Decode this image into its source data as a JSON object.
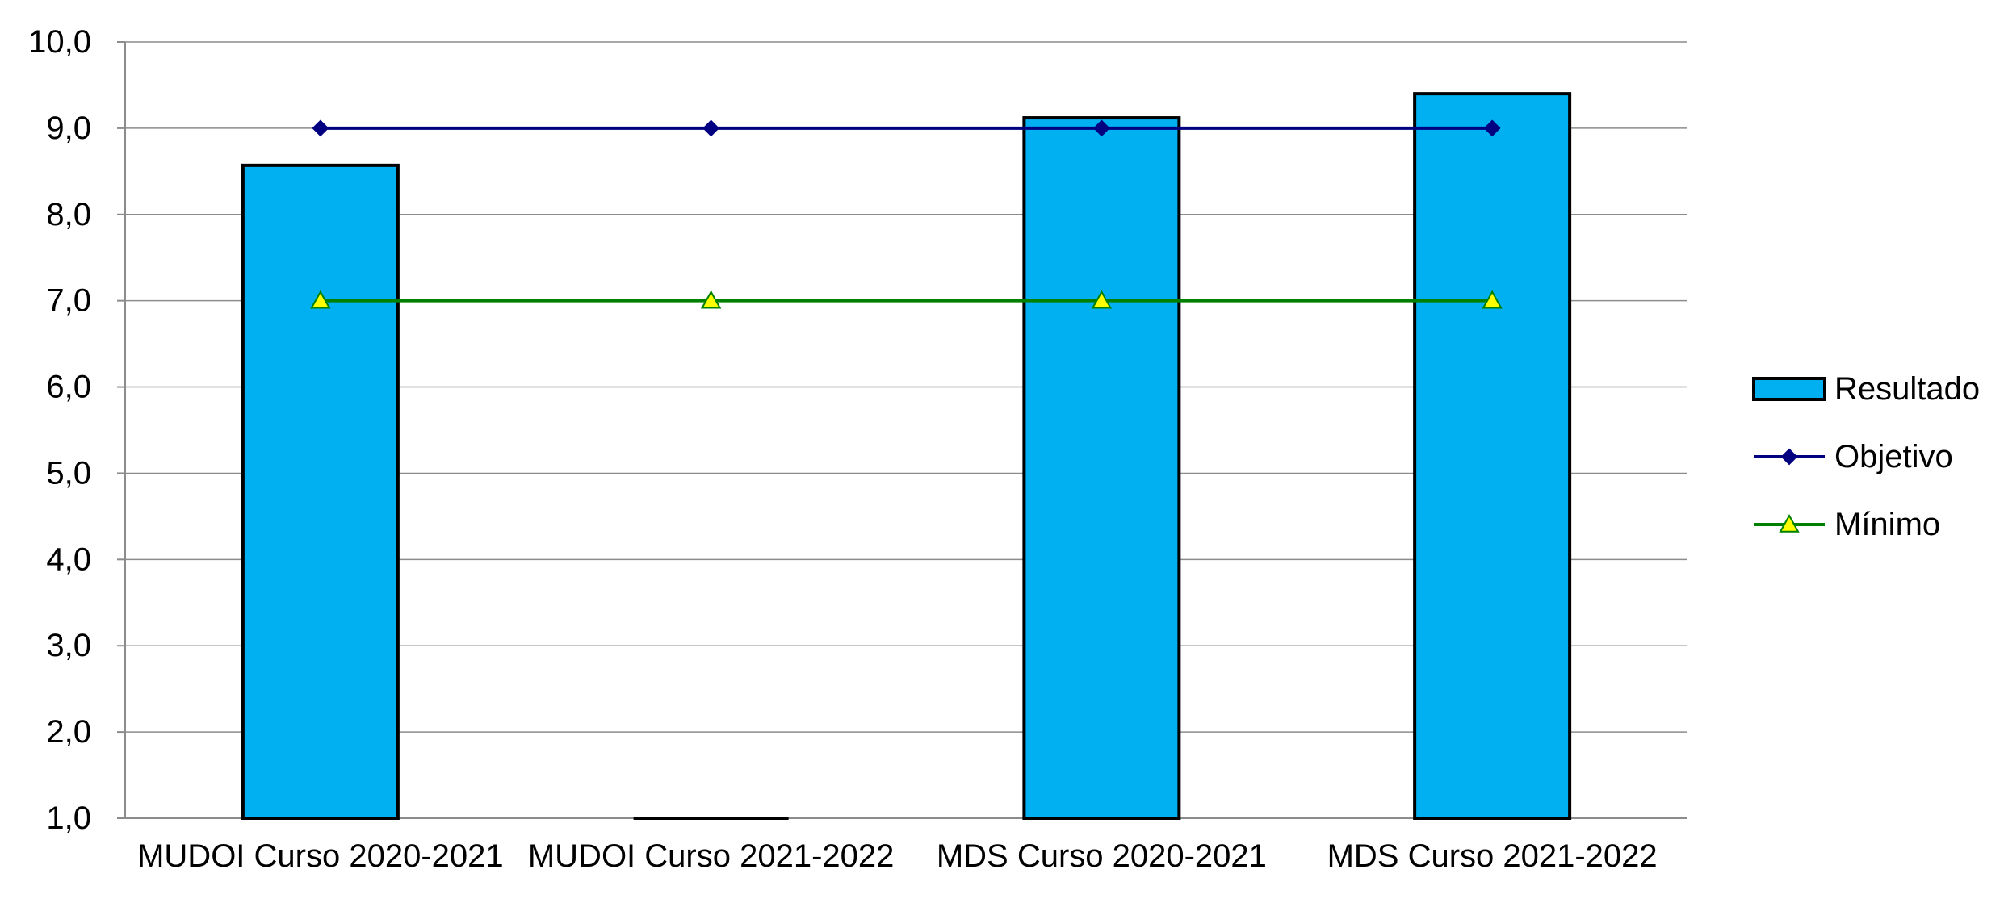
{
  "chart_data": {
    "type": "bar",
    "categories": [
      "MUDOI Curso 2020-2021",
      "MUDOI Curso 2021-2022",
      "MDS Curso 2020-2021",
      "MDS Curso 2021-2022"
    ],
    "series": [
      {
        "name": "Resultado",
        "kind": "bar",
        "values": [
          8.57,
          1.0,
          9.12,
          9.4
        ],
        "color": "#00B0F0"
      },
      {
        "name": "Objetivo",
        "kind": "line",
        "marker": "diamond",
        "values": [
          9.0,
          9.0,
          9.0,
          9.0
        ],
        "color": "#000080"
      },
      {
        "name": "Mínimo",
        "kind": "line",
        "marker": "triangle",
        "values": [
          7.0,
          7.0,
          7.0,
          7.0
        ],
        "color": "#008000",
        "marker_fill": "#FFFF00"
      }
    ],
    "title": "",
    "xlabel": "",
    "ylabel": "",
    "ylim": [
      1.0,
      10.0
    ],
    "yticks": [
      1.0,
      2.0,
      3.0,
      4.0,
      5.0,
      6.0,
      7.0,
      8.0,
      9.0,
      10.0
    ],
    "ytick_labels": [
      "1,0",
      "2,0",
      "3,0",
      "4,0",
      "5,0",
      "6,0",
      "7,0",
      "8,0",
      "9,0",
      "10,0"
    ],
    "grid": true,
    "legend_position": "right"
  }
}
